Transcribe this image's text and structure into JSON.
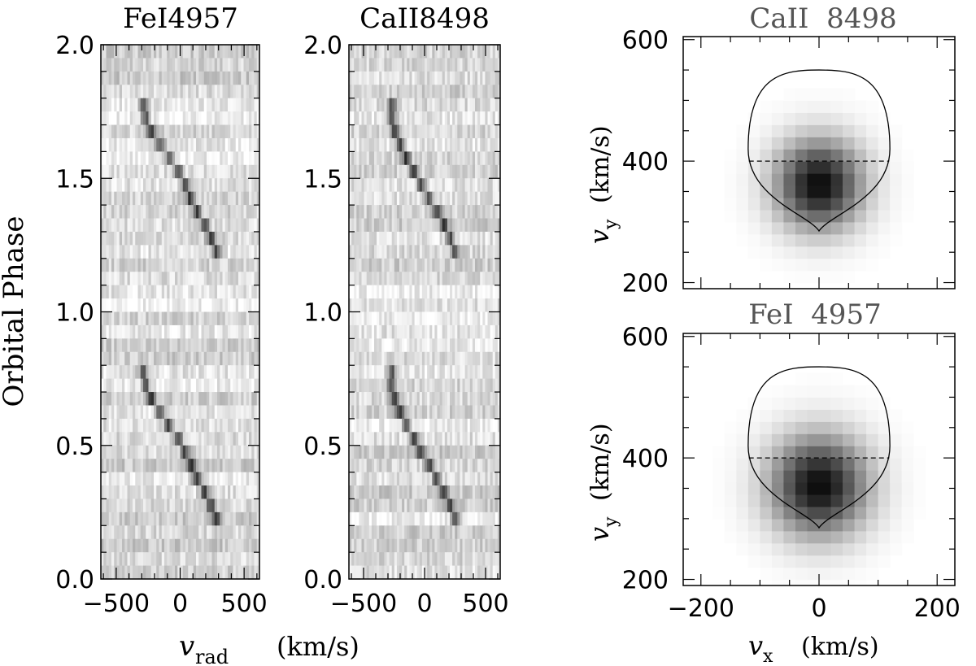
{
  "chart_data": [
    {
      "type": "heatmap",
      "title": "FeI4957",
      "ylabel": "Orbital Phase",
      "shared_xlabel": "v_rad (km/s)",
      "xlim": [
        -620,
        620
      ],
      "ylim": [
        0.0,
        2.0
      ],
      "xticks": [
        -500,
        0,
        500
      ],
      "yticks": [
        0.0,
        0.5,
        1.0,
        1.5,
        2.0
      ],
      "xtick_labels": [
        "-500",
        "0",
        "500"
      ],
      "ytick_labels": [
        "0.0",
        "0.5",
        "1.0",
        "1.5",
        "2.0"
      ],
      "ridge": {
        "description": "sinusoidal absorption track repeated each orbit",
        "phases": [
          0.2,
          0.3,
          0.4,
          0.5,
          0.6,
          0.7,
          0.8,
          1.2,
          1.3,
          1.4,
          1.5,
          1.6,
          1.7,
          1.8
        ],
        "velocities": [
          300,
          220,
          100,
          20,
          -120,
          -260,
          -300,
          300,
          220,
          100,
          20,
          -120,
          -260,
          -300
        ]
      }
    },
    {
      "type": "heatmap",
      "title": "CaII8498",
      "xlim": [
        -620,
        620
      ],
      "ylim": [
        0.0,
        2.0
      ],
      "xticks": [
        -500,
        0,
        500
      ],
      "yticks": [
        0.0,
        0.5,
        1.0,
        1.5,
        2.0
      ],
      "xtick_labels": [
        "-500",
        "0",
        "500"
      ],
      "ytick_labels": [
        "0.0",
        "0.5",
        "1.0",
        "1.5",
        "2.0"
      ],
      "ridge": {
        "description": "sinusoidal absorption track repeated each orbit",
        "phases": [
          0.2,
          0.3,
          0.4,
          0.5,
          0.6,
          0.7,
          0.8,
          1.2,
          1.3,
          1.4,
          1.5,
          1.6,
          1.7,
          1.8
        ],
        "velocities": [
          270,
          190,
          70,
          -60,
          -180,
          -270,
          -270,
          270,
          190,
          70,
          -60,
          -180,
          -270,
          -270
        ]
      }
    },
    {
      "type": "heatmap",
      "title": "CaII 8498",
      "ylabel": "v_y (km/s)",
      "xlim": [
        -230,
        230
      ],
      "ylim": [
        190,
        605
      ],
      "xticks": [
        -200,
        0,
        200
      ],
      "yticks": [
        200,
        400,
        600
      ],
      "ytick_labels": [
        "200",
        "400",
        "600"
      ],
      "peak": {
        "vx": 0,
        "vy": 362
      },
      "roche_lobe": {
        "top_vy": 550,
        "bottom_vy": 285,
        "center_vy": 420,
        "half_width_vx": 120
      },
      "dashed_line_vy": 400
    },
    {
      "type": "heatmap",
      "title": "FeI 4957",
      "xlabel": "v_x (km/s)",
      "ylabel": "v_y (km/s)",
      "xlim": [
        -230,
        230
      ],
      "ylim": [
        190,
        605
      ],
      "xticks": [
        -200,
        0,
        200
      ],
      "yticks": [
        200,
        400,
        600
      ],
      "xtick_labels": [
        "-200",
        "0",
        "200"
      ],
      "ytick_labels": [
        "200",
        "400",
        "600"
      ],
      "peak": {
        "vx": 0,
        "vy": 355
      },
      "roche_lobe": {
        "top_vy": 550,
        "bottom_vy": 285,
        "center_vy": 420,
        "half_width_vx": 120
      },
      "dashed_line_vy": 400
    }
  ],
  "text": {
    "title_fe_trail": "FeI4957",
    "title_ca_trail": "CaII8498",
    "ylabel_phase": "Orbital Phase",
    "xlabel_vrad_sym": "v",
    "xlabel_vrad_sub": "rad",
    "xlabel_vrad_unit": "(km/s)",
    "title_ca_map": "CaII  8498",
    "title_fe_map": "FeI  4957",
    "ylabel_vy_sym": "v",
    "ylabel_vy_sub": "y",
    "ylabel_vy_unit": "(km/s)",
    "xlabel_vx_sym": "v",
    "xlabel_vx_sub": "x",
    "xlabel_vx_unit": "(km/s)"
  }
}
